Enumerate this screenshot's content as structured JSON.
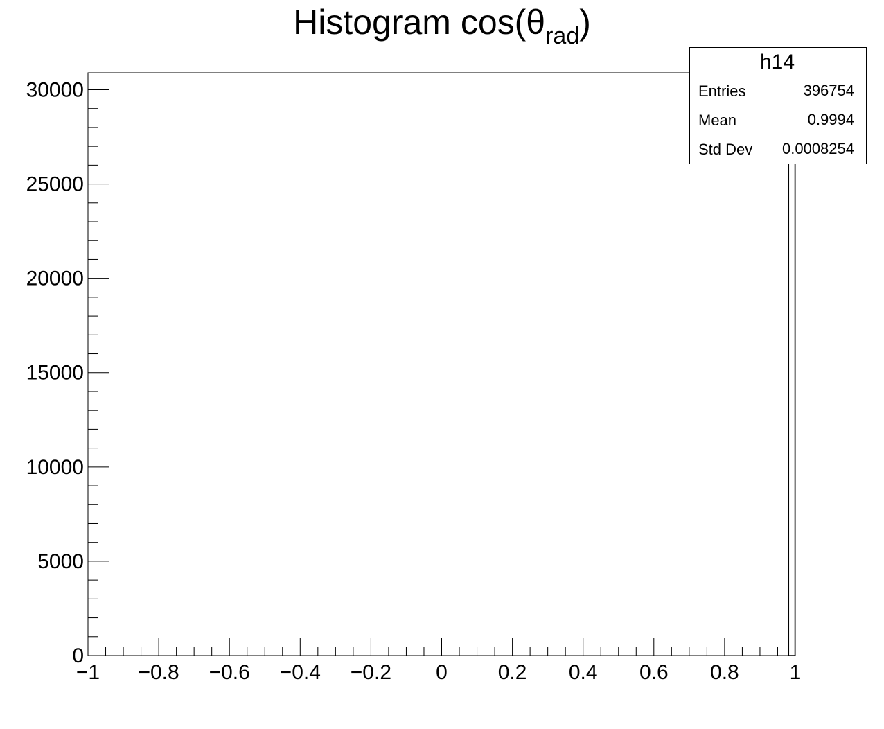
{
  "chart_data": {
    "type": "histogram",
    "title": "Histogram cos(θ",
    "title_subscript": "rad",
    "title_end": ")",
    "bins": [
      0.98,
      1.0
    ],
    "counts": [
      29400
    ],
    "color": "#000000",
    "xlim": [
      -1,
      1
    ],
    "ylim": [
      0,
      30900
    ],
    "xticks": [
      {
        "value": -1,
        "label": "−1"
      },
      {
        "value": -0.8,
        "label": "−0.8"
      },
      {
        "value": -0.6,
        "label": "−0.6"
      },
      {
        "value": -0.4,
        "label": "−0.4"
      },
      {
        "value": -0.2,
        "label": "−0.2"
      },
      0,
      0.2,
      0.4,
      0.6,
      0.8,
      1
    ],
    "yticks": [
      0,
      5000,
      10000,
      15000,
      20000,
      25000,
      30000
    ],
    "stats": {
      "title": "h14",
      "rows": [
        {
          "label": "Entries",
          "value": 396754
        },
        {
          "label": "Mean",
          "value": 0.9994
        },
        {
          "label": "Std Dev",
          "value": 0.0008254
        }
      ]
    }
  }
}
